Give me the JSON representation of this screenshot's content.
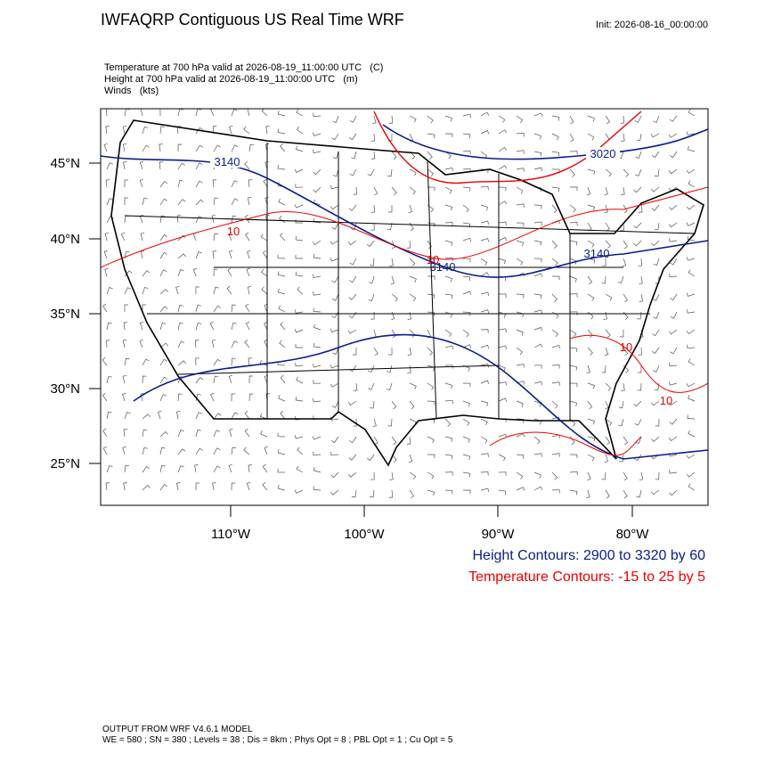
{
  "header": {
    "title": "IWFAQRP Contiguous US Real Time WRF",
    "init": "Init: 2026-08-16_00:00:00"
  },
  "fields": [
    "Temperature at 700 hPa valid at 2026-08-19_11:00:00 UTC   (C)",
    "Height at 700 hPa valid at 2026-08-19_11:00:00 UTC   (m)",
    "Winds   (kts)"
  ],
  "map": {
    "lat_labels": [
      "45°N",
      "40°N",
      "35°N",
      "30°N",
      "25°N"
    ],
    "lon_labels": [
      "110°W",
      "100°W",
      "90°W",
      "80°W"
    ],
    "height_labels": [
      "3140",
      "3020",
      "3140",
      "3140"
    ],
    "temperature_labels": [
      "10",
      "10",
      "10",
      "10"
    ]
  },
  "legend": {
    "height": "Height Contours: 2900 to 3320 by 60",
    "temperature": "Temperature Contours: -15 to 25 by 5"
  },
  "footer": {
    "model": "OUTPUT FROM WRF V4.6.1 MODEL",
    "settings": "WE = 580 ; SN = 380 ; Levels = 38 ; Dis = 8km ; Phys Opt = 8 ; PBL Opt = 1 ; Cu Opt = 5"
  }
}
